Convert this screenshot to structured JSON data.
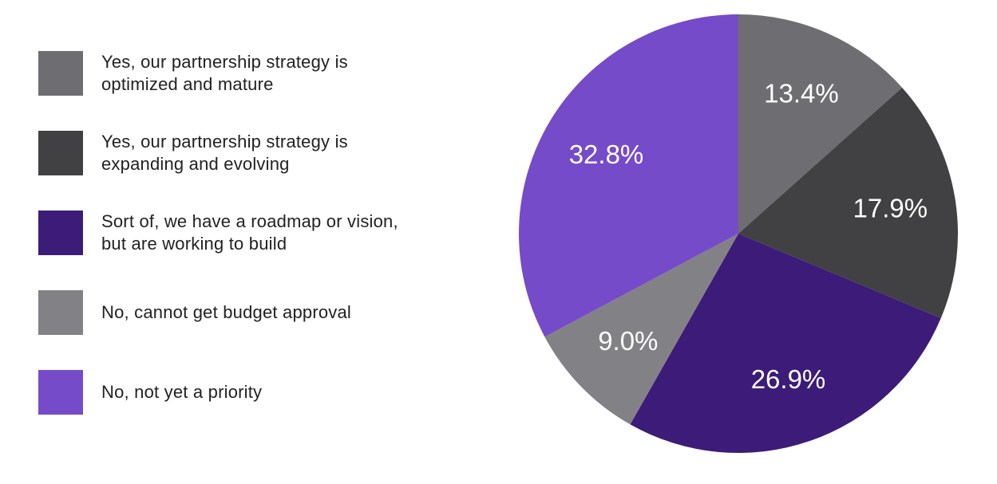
{
  "chart_data": {
    "type": "pie",
    "categories": [
      "Yes, our partnership strategy is optimized and mature",
      "Yes, our partnership strategy is expanding and evolving",
      "Sort of, we have a roadmap or vision, but are working to build",
      "No, cannot get budget approval",
      "No, not yet a priority"
    ],
    "values": [
      13.4,
      17.9,
      26.9,
      9.0,
      32.8
    ],
    "data_labels": [
      "13.4%",
      "17.9%",
      "26.9%",
      "9.0%",
      "32.8%"
    ],
    "colors": [
      "#6e6e72",
      "#414143",
      "#3c1c78",
      "#828286",
      "#764bc9"
    ],
    "start_angle_deg": 0,
    "direction": "clockwise",
    "legend_position": "left"
  },
  "legend": [
    {
      "label": "Yes, our partnership strategy is optimized and mature",
      "color": "#6e6e72"
    },
    {
      "label": "Yes, our partnership strategy is expanding and evolving",
      "color": "#414143"
    },
    {
      "label": "Sort of, we have a roadmap or vision, but are working to build",
      "color": "#3c1c78"
    },
    {
      "label": "No, cannot get budget approval",
      "color": "#828286"
    },
    {
      "label": "No, not yet a priority",
      "color": "#764bc9"
    }
  ]
}
